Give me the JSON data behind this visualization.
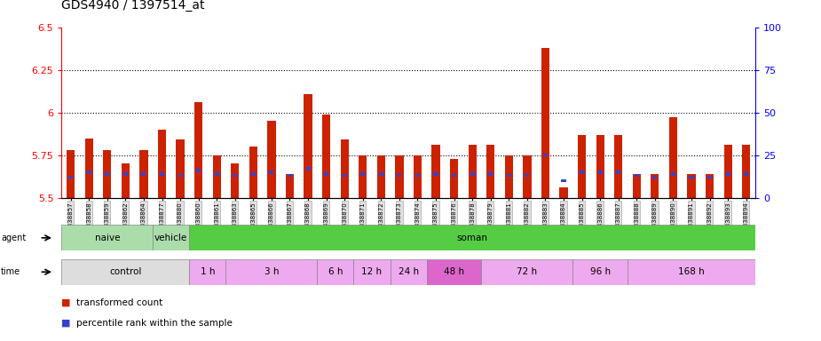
{
  "title": "GDS4940 / 1397514_at",
  "samples": [
    "GSM338857",
    "GSM338858",
    "GSM338859",
    "GSM338862",
    "GSM338864",
    "GSM338877",
    "GSM338880",
    "GSM338860",
    "GSM338861",
    "GSM338863",
    "GSM338865",
    "GSM338866",
    "GSM338867",
    "GSM338868",
    "GSM338869",
    "GSM338870",
    "GSM338871",
    "GSM338872",
    "GSM338873",
    "GSM338874",
    "GSM338875",
    "GSM338876",
    "GSM338878",
    "GSM338879",
    "GSM338881",
    "GSM338882",
    "GSM338883",
    "GSM338884",
    "GSM338885",
    "GSM338886",
    "GSM338887",
    "GSM338888",
    "GSM338889",
    "GSM338890",
    "GSM338891",
    "GSM338892",
    "GSM338893",
    "GSM338894"
  ],
  "transformed_count": [
    5.78,
    5.85,
    5.78,
    5.7,
    5.78,
    5.9,
    5.84,
    6.06,
    5.75,
    5.7,
    5.8,
    5.95,
    5.64,
    6.11,
    5.99,
    5.84,
    5.75,
    5.75,
    5.75,
    5.75,
    5.81,
    5.73,
    5.81,
    5.81,
    5.75,
    5.75,
    6.38,
    5.56,
    5.87,
    5.87,
    5.87,
    5.64,
    5.64,
    5.97,
    5.64,
    5.64,
    5.81,
    5.81
  ],
  "percentile_rank": [
    12,
    15,
    14,
    14,
    14,
    14,
    13,
    16,
    14,
    13,
    14,
    15,
    13,
    17,
    14,
    13,
    14,
    14,
    13,
    13,
    14,
    13,
    14,
    14,
    13,
    13,
    25,
    10,
    15,
    15,
    15,
    13,
    12,
    14,
    12,
    12,
    14,
    14
  ],
  "ylim_left": [
    5.5,
    6.5
  ],
  "ylim_right": [
    0,
    100
  ],
  "yticks_left": [
    5.5,
    5.75,
    6.0,
    6.25,
    6.5
  ],
  "yticks_right": [
    0,
    25,
    50,
    75,
    100
  ],
  "ytick_labels_left": [
    "5.5",
    "5.75",
    "6",
    "6.25",
    "6.5"
  ],
  "ytick_labels_right": [
    "0",
    "25",
    "50",
    "75",
    "100"
  ],
  "grid_values": [
    5.75,
    6.0,
    6.25
  ],
  "bar_color": "#cc2200",
  "percentile_color": "#3344cc",
  "agent_bands": [
    {
      "label": "naive",
      "start": 0,
      "end": 5,
      "color": "#aaddaa"
    },
    {
      "label": "vehicle",
      "start": 5,
      "end": 7,
      "color": "#aaddaa"
    },
    {
      "label": "soman",
      "start": 7,
      "end": 38,
      "color": "#55cc44"
    }
  ],
  "time_bands": [
    {
      "label": "control",
      "start": 0,
      "end": 7,
      "color": "#dddddd"
    },
    {
      "label": "1 h",
      "start": 7,
      "end": 9,
      "color": "#eeaaee"
    },
    {
      "label": "3 h",
      "start": 9,
      "end": 14,
      "color": "#eeaaee"
    },
    {
      "label": "6 h",
      "start": 14,
      "end": 16,
      "color": "#eeaaee"
    },
    {
      "label": "12 h",
      "start": 16,
      "end": 18,
      "color": "#eeaaee"
    },
    {
      "label": "24 h",
      "start": 18,
      "end": 20,
      "color": "#eeaaee"
    },
    {
      "label": "48 h",
      "start": 20,
      "end": 23,
      "color": "#dd66cc"
    },
    {
      "label": "72 h",
      "start": 23,
      "end": 28,
      "color": "#eeaaee"
    },
    {
      "label": "96 h",
      "start": 28,
      "end": 31,
      "color": "#eeaaee"
    },
    {
      "label": "168 h",
      "start": 31,
      "end": 38,
      "color": "#eeaaee"
    }
  ],
  "legend_items": [
    {
      "label": "transformed count",
      "color": "#cc2200"
    },
    {
      "label": "percentile rank within the sample",
      "color": "#3344cc"
    }
  ],
  "background_color": "#ffffff",
  "plot_area_color": "#ffffff"
}
